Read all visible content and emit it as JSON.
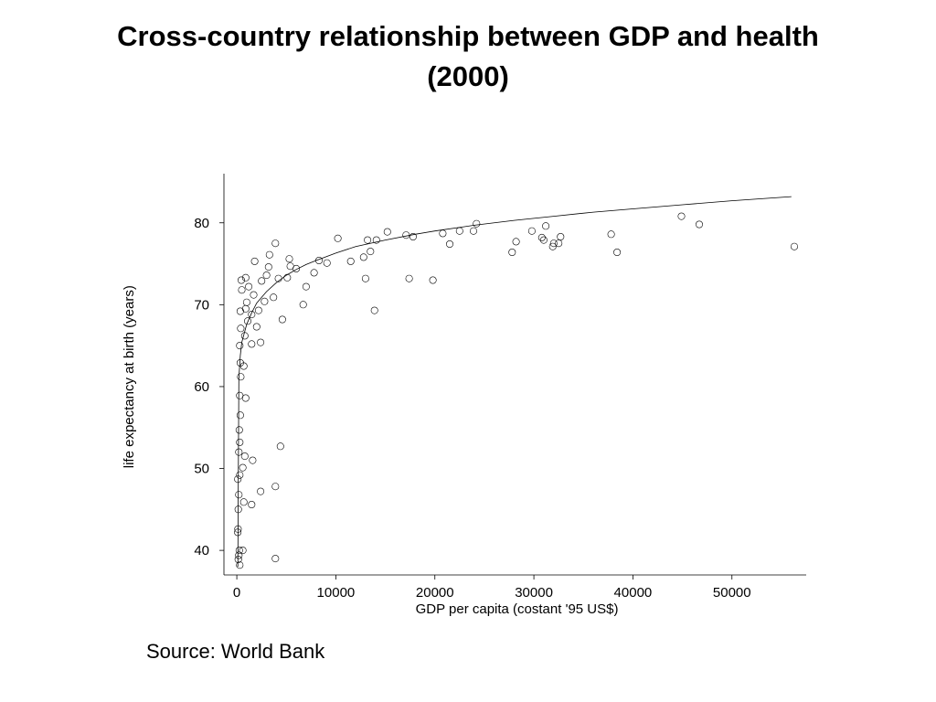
{
  "slide": {
    "title_line1": "Cross-country relationship between GDP and health",
    "title_line2": "(2000)",
    "source": "Source: World Bank"
  },
  "chart_data": {
    "type": "scatter",
    "title": "",
    "xlabel": "GDP per capita (costant '95 US$)",
    "ylabel": "life expectancy at birth (years)",
    "xlim": [
      -1300,
      57500
    ],
    "ylim": [
      37,
      86
    ],
    "xticks": [
      0,
      10000,
      20000,
      30000,
      40000,
      50000
    ],
    "yticks": [
      40,
      50,
      60,
      70,
      80
    ],
    "grid": false,
    "legend": "none",
    "marker": "hollow-circle",
    "colors": {
      "points": "#000000",
      "curve": "#000000",
      "axes": "#000000"
    },
    "fit_curve": {
      "x": [
        100,
        200,
        350,
        500,
        750,
        1000,
        1500,
        2000,
        3000,
        4000,
        5000,
        6000,
        7000,
        8000,
        10000,
        12000,
        15000,
        18000,
        20000,
        24000,
        28000,
        32000,
        36000,
        40000,
        45000,
        50000,
        56000
      ],
      "y": [
        38.0,
        61.0,
        63.8,
        65.4,
        66.5,
        67.6,
        69.0,
        70.2,
        71.6,
        72.7,
        73.6,
        74.3,
        74.9,
        75.4,
        76.3,
        77.1,
        77.9,
        78.6,
        79.0,
        79.7,
        80.3,
        80.8,
        81.3,
        81.7,
        82.2,
        82.7,
        83.2
      ]
    },
    "points": [
      {
        "x": 90,
        "y": 42.2
      },
      {
        "x": 120,
        "y": 42.6
      },
      {
        "x": 150,
        "y": 38.9
      },
      {
        "x": 200,
        "y": 39.4
      },
      {
        "x": 250,
        "y": 40.0
      },
      {
        "x": 300,
        "y": 38.2
      },
      {
        "x": 150,
        "y": 45.0
      },
      {
        "x": 200,
        "y": 46.8
      },
      {
        "x": 100,
        "y": 48.7
      },
      {
        "x": 300,
        "y": 49.2
      },
      {
        "x": 200,
        "y": 52.0
      },
      {
        "x": 300,
        "y": 53.2
      },
      {
        "x": 250,
        "y": 54.7
      },
      {
        "x": 350,
        "y": 56.5
      },
      {
        "x": 300,
        "y": 58.9
      },
      {
        "x": 400,
        "y": 61.2
      },
      {
        "x": 350,
        "y": 62.9
      },
      {
        "x": 300,
        "y": 65.0
      },
      {
        "x": 400,
        "y": 67.1
      },
      {
        "x": 350,
        "y": 69.2
      },
      {
        "x": 500,
        "y": 71.8
      },
      {
        "x": 450,
        "y": 73.0
      },
      {
        "x": 600,
        "y": 40.0
      },
      {
        "x": 700,
        "y": 45.9
      },
      {
        "x": 600,
        "y": 50.1
      },
      {
        "x": 800,
        "y": 51.5
      },
      {
        "x": 900,
        "y": 58.6
      },
      {
        "x": 700,
        "y": 62.5
      },
      {
        "x": 800,
        "y": 66.2
      },
      {
        "x": 900,
        "y": 69.5
      },
      {
        "x": 900,
        "y": 73.3
      },
      {
        "x": 1000,
        "y": 70.3
      },
      {
        "x": 1100,
        "y": 68.0
      },
      {
        "x": 1200,
        "y": 72.2
      },
      {
        "x": 1500,
        "y": 65.2
      },
      {
        "x": 1500,
        "y": 68.8
      },
      {
        "x": 1500,
        "y": 45.6
      },
      {
        "x": 1600,
        "y": 51.0
      },
      {
        "x": 1700,
        "y": 71.2
      },
      {
        "x": 1800,
        "y": 75.3
      },
      {
        "x": 2000,
        "y": 67.3
      },
      {
        "x": 2200,
        "y": 69.3
      },
      {
        "x": 2400,
        "y": 47.2
      },
      {
        "x": 2400,
        "y": 65.4
      },
      {
        "x": 2500,
        "y": 72.9
      },
      {
        "x": 2800,
        "y": 70.4
      },
      {
        "x": 3000,
        "y": 73.6
      },
      {
        "x": 3200,
        "y": 74.6
      },
      {
        "x": 3300,
        "y": 76.1
      },
      {
        "x": 3700,
        "y": 70.9
      },
      {
        "x": 3900,
        "y": 77.5
      },
      {
        "x": 3900,
        "y": 47.8
      },
      {
        "x": 3900,
        "y": 39.0
      },
      {
        "x": 4200,
        "y": 73.2
      },
      {
        "x": 4400,
        "y": 52.7
      },
      {
        "x": 4600,
        "y": 68.2
      },
      {
        "x": 5100,
        "y": 73.3
      },
      {
        "x": 5300,
        "y": 75.6
      },
      {
        "x": 5400,
        "y": 74.7
      },
      {
        "x": 6000,
        "y": 74.4
      },
      {
        "x": 6700,
        "y": 70.0
      },
      {
        "x": 7000,
        "y": 72.2
      },
      {
        "x": 7800,
        "y": 73.9
      },
      {
        "x": 8300,
        "y": 75.4
      },
      {
        "x": 9100,
        "y": 75.1
      },
      {
        "x": 10200,
        "y": 78.1
      },
      {
        "x": 11500,
        "y": 75.3
      },
      {
        "x": 12800,
        "y": 75.8
      },
      {
        "x": 13000,
        "y": 73.2
      },
      {
        "x": 13200,
        "y": 77.9
      },
      {
        "x": 13500,
        "y": 76.5
      },
      {
        "x": 13900,
        "y": 69.3
      },
      {
        "x": 14100,
        "y": 77.9
      },
      {
        "x": 15200,
        "y": 78.9
      },
      {
        "x": 17100,
        "y": 78.5
      },
      {
        "x": 17400,
        "y": 73.2
      },
      {
        "x": 17800,
        "y": 78.3
      },
      {
        "x": 19800,
        "y": 73.0
      },
      {
        "x": 20800,
        "y": 78.7
      },
      {
        "x": 21500,
        "y": 77.4
      },
      {
        "x": 22500,
        "y": 79.0
      },
      {
        "x": 23900,
        "y": 79.0
      },
      {
        "x": 24200,
        "y": 79.9
      },
      {
        "x": 27800,
        "y": 76.4
      },
      {
        "x": 28200,
        "y": 77.7
      },
      {
        "x": 29800,
        "y": 79.0
      },
      {
        "x": 30800,
        "y": 78.2
      },
      {
        "x": 31000,
        "y": 77.9
      },
      {
        "x": 31200,
        "y": 79.6
      },
      {
        "x": 31900,
        "y": 77.1
      },
      {
        "x": 32000,
        "y": 77.5
      },
      {
        "x": 32500,
        "y": 77.5
      },
      {
        "x": 32700,
        "y": 78.3
      },
      {
        "x": 37800,
        "y": 78.6
      },
      {
        "x": 38400,
        "y": 76.4
      },
      {
        "x": 44900,
        "y": 80.8
      },
      {
        "x": 46700,
        "y": 79.8
      },
      {
        "x": 56300,
        "y": 77.1
      }
    ]
  }
}
